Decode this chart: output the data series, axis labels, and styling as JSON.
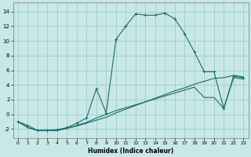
{
  "bg_color": "#c8e8e8",
  "grid_color": "#99c4c4",
  "line_color": "#1a6b6b",
  "xlabel": "Humidex (Indice chaleur)",
  "xlim": [
    -0.5,
    23.5
  ],
  "ylim": [
    -3.2,
    15.2
  ],
  "xticks": [
    0,
    1,
    2,
    3,
    4,
    5,
    6,
    7,
    8,
    9,
    10,
    11,
    12,
    13,
    14,
    15,
    16,
    17,
    18,
    19,
    20,
    21,
    22,
    23
  ],
  "yticks": [
    -2,
    0,
    2,
    4,
    6,
    8,
    10,
    12,
    14
  ],
  "curve_x": [
    0,
    1,
    2,
    3,
    4,
    5,
    6,
    7,
    8,
    9,
    10,
    11,
    12,
    13,
    14,
    15,
    16,
    17,
    18,
    19,
    20,
    21,
    22,
    23
  ],
  "curve_y": [
    -1.0,
    -1.5,
    -2.2,
    -2.2,
    -2.1,
    -1.8,
    -1.2,
    -0.5,
    3.5,
    0.2,
    10.2,
    12.0,
    13.7,
    13.5,
    13.5,
    13.8,
    13.0,
    11.0,
    8.5,
    5.8,
    5.8,
    0.8,
    5.2,
    5.0
  ],
  "line2_x": [
    0,
    1,
    2,
    3,
    4,
    5,
    6,
    7,
    8,
    9,
    10,
    11,
    12,
    13,
    14,
    15,
    16,
    17,
    18,
    19,
    20,
    21,
    22,
    23
  ],
  "line2_y": [
    -1.0,
    -1.8,
    -2.2,
    -2.2,
    -2.2,
    -1.9,
    -1.6,
    -1.2,
    -0.8,
    -0.4,
    0.2,
    0.7,
    1.2,
    1.7,
    2.2,
    2.7,
    3.2,
    3.6,
    4.1,
    4.5,
    4.9,
    5.0,
    5.3,
    5.1
  ],
  "line3_x": [
    0,
    1,
    2,
    3,
    4,
    5,
    6,
    7,
    8,
    9,
    10,
    11,
    12,
    13,
    14,
    15,
    16,
    17,
    18,
    19,
    20,
    21,
    22,
    23
  ],
  "line3_y": [
    -1.0,
    -1.8,
    -2.2,
    -2.2,
    -2.2,
    -1.9,
    -1.5,
    -1.1,
    -0.5,
    0.0,
    0.5,
    0.9,
    1.3,
    1.7,
    2.1,
    2.5,
    2.9,
    3.3,
    3.7,
    2.3,
    2.3,
    0.8,
    5.0,
    4.8
  ]
}
